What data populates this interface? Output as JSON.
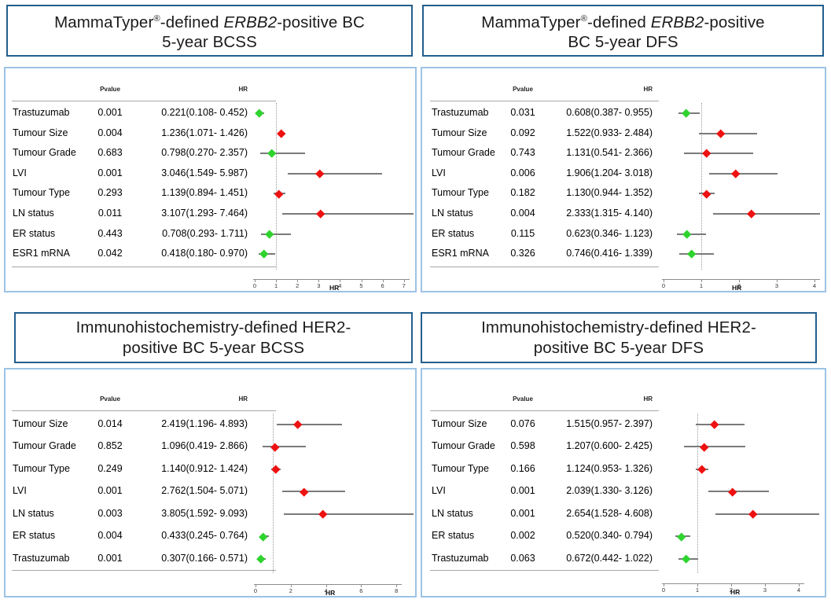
{
  "colors": {
    "title_border": "#215f8e",
    "panel_border": "#9dc3e6",
    "positive_red": "#ee1111",
    "protective_green": "#2fd32f",
    "ci_line": "#7a7a7a",
    "axis": "#8c8c8c",
    "rule": "#a8a8a8"
  },
  "column_headers": {
    "pvalue": "Pvalue",
    "hr": "HR"
  },
  "chart_data": [
    {
      "type": "forest",
      "title_plain": "MammaTyper®-defined ERBB2-positive BC 5-year BCSS",
      "title_parts": [
        {
          "t": "MammaTyper"
        },
        {
          "t": "®",
          "s": "sup"
        },
        {
          "t": "-defined "
        },
        {
          "t": "ERBB2",
          "s": "i"
        },
        {
          "t": "-positive BC"
        },
        {
          "br": true
        },
        {
          "t": "5-year BCSS"
        }
      ],
      "columns": [
        "Pvalue",
        "HR"
      ],
      "xlabel": "HR",
      "xlim": [
        0,
        7.5
      ],
      "ticks": [
        0,
        1,
        2,
        3,
        4,
        5,
        6,
        7
      ],
      "refline": 1,
      "legend": "green = HR < 1, red = HR > 1",
      "rows": [
        {
          "label": "Trastuzumab",
          "pvalue": "0.001",
          "hr_text": "0.221(0.108- 0.452)",
          "hr": 0.221,
          "lo": 0.108,
          "hi": 0.452
        },
        {
          "label": "Tumour Size",
          "pvalue": "0.004",
          "hr_text": "1.236(1.071- 1.426)",
          "hr": 1.236,
          "lo": 1.071,
          "hi": 1.426
        },
        {
          "label": "Tumour Grade",
          "pvalue": "0.683",
          "hr_text": "0.798(0.270- 2.357)",
          "hr": 0.798,
          "lo": 0.27,
          "hi": 2.357
        },
        {
          "label": "LVI",
          "pvalue": "0.001",
          "hr_text": "3.046(1.549- 5.987)",
          "hr": 3.046,
          "lo": 1.549,
          "hi": 5.987
        },
        {
          "label": "Tumour Type",
          "pvalue": "0.293",
          "hr_text": "1.139(0.894- 1.451)",
          "hr": 1.139,
          "lo": 0.894,
          "hi": 1.451
        },
        {
          "label": "LN status",
          "pvalue": "0.011",
          "hr_text": "3.107(1.293- 7.464)",
          "hr": 3.107,
          "lo": 1.293,
          "hi": 7.464
        },
        {
          "label": "ER status",
          "pvalue": "0.443",
          "hr_text": "0.708(0.293- 1.711)",
          "hr": 0.708,
          "lo": 0.293,
          "hi": 1.711
        },
        {
          "label": "ESR1 mRNA",
          "pvalue": "0.042",
          "hr_text": "0.418(0.180- 0.970)",
          "hr": 0.418,
          "lo": 0.18,
          "hi": 0.97
        }
      ]
    },
    {
      "type": "forest",
      "title_plain": "MammaTyper®-defined ERBB2-positive BC 5-year DFS",
      "title_parts": [
        {
          "t": "MammaTyper"
        },
        {
          "t": "®",
          "s": "sup"
        },
        {
          "t": "-defined "
        },
        {
          "t": "ERBB2",
          "s": "i"
        },
        {
          "t": "-positive"
        },
        {
          "br": true
        },
        {
          "t": "BC 5-year DFS"
        }
      ],
      "columns": [
        "Pvalue",
        "HR"
      ],
      "xlabel": "HR",
      "xlim": [
        0,
        4.2
      ],
      "ticks": [
        0,
        1,
        2,
        3,
        4
      ],
      "refline": 1,
      "legend": "green = HR < 1, red = HR > 1",
      "rows": [
        {
          "label": "Trastuzumab",
          "pvalue": "0.031",
          "hr_text": "0.608(0.387- 0.955)",
          "hr": 0.608,
          "lo": 0.387,
          "hi": 0.955
        },
        {
          "label": "Tumour Size",
          "pvalue": "0.092",
          "hr_text": "1.522(0.933- 2.484)",
          "hr": 1.522,
          "lo": 0.933,
          "hi": 2.484
        },
        {
          "label": "Tumour Grade",
          "pvalue": "0.743",
          "hr_text": "1.131(0.541- 2.366)",
          "hr": 1.131,
          "lo": 0.541,
          "hi": 2.366
        },
        {
          "label": "LVI",
          "pvalue": "0.006",
          "hr_text": "1.906(1.204- 3.018)",
          "hr": 1.906,
          "lo": 1.204,
          "hi": 3.018
        },
        {
          "label": "Tumour Type",
          "pvalue": "0.182",
          "hr_text": "1.130(0.944- 1.352)",
          "hr": 1.13,
          "lo": 0.944,
          "hi": 1.352
        },
        {
          "label": "LN status",
          "pvalue": "0.004",
          "hr_text": "2.333(1.315- 4.140)",
          "hr": 2.333,
          "lo": 1.315,
          "hi": 4.14
        },
        {
          "label": "ER status",
          "pvalue": "0.115",
          "hr_text": "0.623(0.346- 1.123)",
          "hr": 0.623,
          "lo": 0.346,
          "hi": 1.123
        },
        {
          "label": "ESR1 mRNA",
          "pvalue": "0.326",
          "hr_text": "0.746(0.416- 1.339)",
          "hr": 0.746,
          "lo": 0.416,
          "hi": 1.339
        }
      ]
    },
    {
      "type": "forest",
      "title_plain": "Immunohistochemistry-defined HER2-positive BC 5-year BCSS",
      "title_parts": [
        {
          "t": "Immunohistochemistry-defined HER2-"
        },
        {
          "br": true
        },
        {
          "t": "positive BC 5-year BCSS"
        }
      ],
      "columns": [
        "Pvalue",
        "HR"
      ],
      "xlabel": "HR",
      "xlim": [
        0,
        9.1
      ],
      "ticks": [
        0,
        2,
        4,
        6,
        8
      ],
      "refline": 1,
      "legend": "green = HR < 1, red = HR > 1",
      "rows": [
        {
          "label": "Tumour Size",
          "pvalue": "0.014",
          "hr_text": "2.419(1.196- 4.893)",
          "hr": 2.419,
          "lo": 1.196,
          "hi": 4.893
        },
        {
          "label": "Tumour Grade",
          "pvalue": "0.852",
          "hr_text": "1.096(0.419- 2.866)",
          "hr": 1.096,
          "lo": 0.419,
          "hi": 2.866
        },
        {
          "label": "Tumour Type",
          "pvalue": "0.249",
          "hr_text": "1.140(0.912- 1.424)",
          "hr": 1.14,
          "lo": 0.912,
          "hi": 1.424
        },
        {
          "label": "LVI",
          "pvalue": "0.001",
          "hr_text": "2.762(1.504- 5.071)",
          "hr": 2.762,
          "lo": 1.504,
          "hi": 5.071
        },
        {
          "label": "LN status",
          "pvalue": "0.003",
          "hr_text": "3.805(1.592- 9.093)",
          "hr": 3.805,
          "lo": 1.592,
          "hi": 9.093
        },
        {
          "label": "ER status",
          "pvalue": "0.004",
          "hr_text": "0.433(0.245- 0.764)",
          "hr": 0.433,
          "lo": 0.245,
          "hi": 0.764
        },
        {
          "label": "Trastuzumab",
          "pvalue": "0.001",
          "hr_text": "0.307(0.166- 0.571)",
          "hr": 0.307,
          "lo": 0.166,
          "hi": 0.571
        }
      ]
    },
    {
      "type": "forest",
      "title_plain": "Immunohistochemistry-defined HER2-positive BC 5-year DFS",
      "title_parts": [
        {
          "t": "Immunohistochemistry-defined HER2-"
        },
        {
          "br": true
        },
        {
          "t": "positive BC 5-year DFS"
        }
      ],
      "columns": [
        "Pvalue",
        "HR"
      ],
      "xlabel": "HR",
      "xlim": [
        0,
        4.7
      ],
      "ticks": [
        0,
        1,
        2,
        3,
        4
      ],
      "refline": 1,
      "legend": "green = HR < 1, red = HR > 1",
      "rows": [
        {
          "label": "Tumour Size",
          "pvalue": "0.076",
          "hr_text": "1.515(0.957- 2.397)",
          "hr": 1.515,
          "lo": 0.957,
          "hi": 2.397
        },
        {
          "label": "Tumour Grade",
          "pvalue": "0.598",
          "hr_text": "1.207(0.600- 2.425)",
          "hr": 1.207,
          "lo": 0.6,
          "hi": 2.425
        },
        {
          "label": "Tumour Type",
          "pvalue": "0.166",
          "hr_text": "1.124(0.953- 1.326)",
          "hr": 1.124,
          "lo": 0.953,
          "hi": 1.326
        },
        {
          "label": "LVI",
          "pvalue": "0.001",
          "hr_text": "2.039(1.330- 3.126)",
          "hr": 2.039,
          "lo": 1.33,
          "hi": 3.126
        },
        {
          "label": "LN status",
          "pvalue": "0.001",
          "hr_text": "2.654(1.528- 4.608)",
          "hr": 2.654,
          "lo": 1.528,
          "hi": 4.608
        },
        {
          "label": "ER status",
          "pvalue": "0.002",
          "hr_text": "0.520(0.340- 0.794)",
          "hr": 0.52,
          "lo": 0.34,
          "hi": 0.794
        },
        {
          "label": "Trastuzumab",
          "pvalue": "0.063",
          "hr_text": "0.672(0.442- 1.022)",
          "hr": 0.672,
          "lo": 0.442,
          "hi": 1.022
        }
      ]
    }
  ]
}
